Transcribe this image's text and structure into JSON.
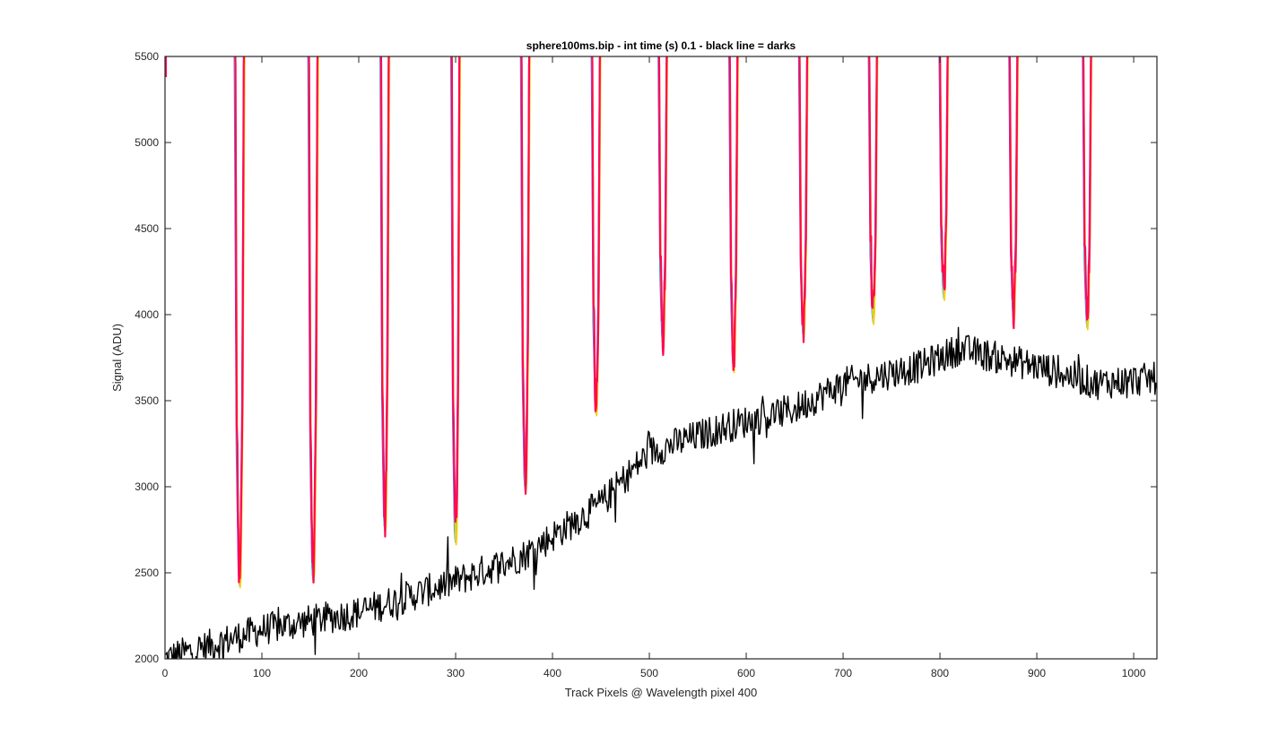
{
  "chart_data": {
    "type": "line",
    "title": "sphere100ms.bip - int time (s) 0.1 - black line = darks",
    "xlabel": "Track Pixels @ Wavelength pixel 400",
    "ylabel": "Signal (ADU)",
    "xlim": [
      0,
      1024
    ],
    "ylim": [
      2000,
      5500
    ],
    "xticks": [
      0,
      100,
      200,
      300,
      400,
      500,
      600,
      700,
      800,
      900,
      1000
    ],
    "yticks": [
      2000,
      2500,
      3000,
      3500,
      4000,
      4500,
      5000,
      5500
    ],
    "grid": false,
    "legend": "none",
    "colors": {
      "signal": "#ff0a50",
      "signal_accents": [
        "#7a2bff",
        "#2bd3ff",
        "#39e62b",
        "#ffcc00"
      ],
      "darks": "#000000",
      "axes": "#262626"
    },
    "series": [
      {
        "role": "bright-signal",
        "baseline": 5500,
        "dips": [
          {
            "center": 77,
            "half_width": 5,
            "min": 2440
          },
          {
            "center": 153,
            "half_width": 5,
            "min": 2470
          },
          {
            "center": 227,
            "half_width": 4.5,
            "min": 2760
          },
          {
            "center": 300,
            "half_width": 4.5,
            "min": 2690
          },
          {
            "center": 372,
            "half_width": 4.5,
            "min": 2990
          },
          {
            "center": 445,
            "half_width": 4.5,
            "min": 3440
          },
          {
            "center": 514,
            "half_width": 4.5,
            "min": 3830
          },
          {
            "center": 587,
            "half_width": 4.5,
            "min": 3690
          },
          {
            "center": 659,
            "half_width": 4.5,
            "min": 3880
          },
          {
            "center": 731,
            "half_width": 4.5,
            "min": 3970
          },
          {
            "center": 804,
            "half_width": 4.5,
            "min": 4110
          },
          {
            "center": 876,
            "half_width": 4.5,
            "min": 3980
          },
          {
            "center": 952,
            "half_width": 4.5,
            "min": 3940
          }
        ]
      },
      {
        "role": "darks",
        "trend": [
          [
            0,
            2000
          ],
          [
            100,
            2170
          ],
          [
            200,
            2270
          ],
          [
            300,
            2450
          ],
          [
            370,
            2600
          ],
          [
            450,
            2900
          ],
          [
            500,
            3200
          ],
          [
            580,
            3350
          ],
          [
            650,
            3450
          ],
          [
            700,
            3600
          ],
          [
            780,
            3700
          ],
          [
            820,
            3800
          ],
          [
            900,
            3700
          ],
          [
            960,
            3600
          ],
          [
            1024,
            3630
          ]
        ],
        "noise_amplitude": 95
      }
    ]
  }
}
